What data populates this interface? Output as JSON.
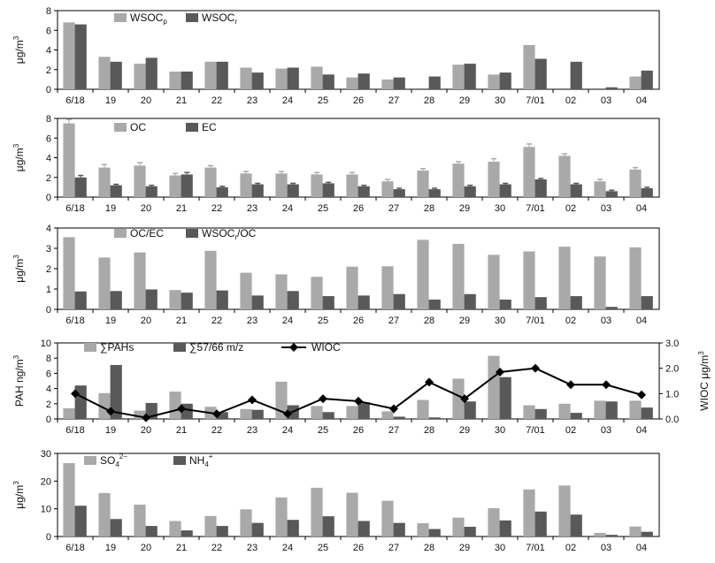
{
  "colors": {
    "light": "#a9a9a9",
    "dark": "#595959",
    "line": "#000000"
  },
  "chart_data": [
    {
      "type": "bar",
      "categories": [
        "6/18",
        "19",
        "20",
        "21",
        "22",
        "23",
        "24",
        "25",
        "26",
        "27",
        "28",
        "29",
        "30",
        "7/01",
        "02",
        "03",
        "04"
      ],
      "ylabel": "μg/m³",
      "ylim": [
        0,
        8
      ],
      "yticks": [
        0,
        2,
        4,
        6,
        8
      ],
      "series": [
        {
          "name": "WSOCp",
          "color": "light",
          "values": [
            6.8,
            3.3,
            2.6,
            1.8,
            2.8,
            2.2,
            2.1,
            2.3,
            1.2,
            1.0,
            0.0,
            2.5,
            1.5,
            4.5,
            0.0,
            0.0,
            1.3
          ]
        },
        {
          "name": "WSOCr",
          "color": "dark",
          "values": [
            6.6,
            2.8,
            3.2,
            1.8,
            2.8,
            1.7,
            2.2,
            1.5,
            1.6,
            1.2,
            1.3,
            2.6,
            1.7,
            3.1,
            2.8,
            0.2,
            1.9
          ]
        }
      ],
      "legend_text": [
        {
          "main": "WSOC",
          "sub": "p"
        },
        {
          "main": "WSOC",
          "sub": "r"
        }
      ]
    },
    {
      "type": "bar",
      "categories": [
        "6/18",
        "19",
        "20",
        "21",
        "22",
        "23",
        "24",
        "25",
        "26",
        "27",
        "28",
        "29",
        "30",
        "7/01",
        "02",
        "03",
        "04"
      ],
      "ylabel": "μg/m³",
      "ylim": [
        0,
        8
      ],
      "yticks": [
        0,
        2,
        4,
        6,
        8
      ],
      "series": [
        {
          "name": "OC",
          "color": "light",
          "values": [
            7.5,
            3.0,
            3.2,
            2.2,
            3.0,
            2.4,
            2.4,
            2.3,
            2.3,
            1.6,
            2.7,
            3.4,
            3.6,
            5.1,
            4.2,
            1.6,
            2.8
          ],
          "errors": [
            0.4,
            0.3,
            0.3,
            0.2,
            0.2,
            0.2,
            0.2,
            0.2,
            0.2,
            0.2,
            0.2,
            0.2,
            0.3,
            0.3,
            0.2,
            0.2,
            0.2
          ]
        },
        {
          "name": "EC",
          "color": "dark",
          "values": [
            2.0,
            1.2,
            1.1,
            2.3,
            1.0,
            1.3,
            1.3,
            1.4,
            1.1,
            0.8,
            0.8,
            1.1,
            1.3,
            1.8,
            1.3,
            0.6,
            0.9
          ],
          "errors": [
            0.2,
            0.1,
            0.1,
            0.2,
            0.1,
            0.1,
            0.1,
            0.1,
            0.1,
            0.1,
            0.1,
            0.1,
            0.1,
            0.1,
            0.1,
            0.1,
            0.1
          ]
        }
      ],
      "legend_text": [
        {
          "main": "OC",
          "sub": ""
        },
        {
          "main": "EC",
          "sub": ""
        }
      ]
    },
    {
      "type": "bar",
      "categories": [
        "6/18",
        "19",
        "20",
        "21",
        "22",
        "23",
        "24",
        "25",
        "26",
        "27",
        "28",
        "29",
        "30",
        "7/01",
        "02",
        "03",
        "04"
      ],
      "ylabel": "μg/m³",
      "ylim": [
        0,
        4
      ],
      "yticks": [
        0,
        1,
        2,
        3,
        4
      ],
      "series": [
        {
          "name": "OC/EC",
          "color": "light",
          "values": [
            3.55,
            2.55,
            2.8,
            0.95,
            2.88,
            1.8,
            1.72,
            1.6,
            2.1,
            2.12,
            3.42,
            3.22,
            2.68,
            2.85,
            3.08,
            2.6,
            3.05
          ]
        },
        {
          "name": "WSOCr/OC",
          "color": "dark",
          "values": [
            0.88,
            0.9,
            0.98,
            0.82,
            0.93,
            0.68,
            0.9,
            0.65,
            0.68,
            0.75,
            0.48,
            0.75,
            0.48,
            0.6,
            0.65,
            0.12,
            0.65
          ]
        }
      ],
      "legend_text": [
        {
          "main": "OC/EC",
          "sub": ""
        },
        {
          "main": "WSOC",
          "sub": "r",
          "tail": "/OC"
        }
      ]
    },
    {
      "type": "bar+line",
      "categories": [
        "6/18",
        "19",
        "20",
        "21",
        "22",
        "23",
        "24",
        "25",
        "26",
        "27",
        "28",
        "29",
        "30",
        "7/01",
        "02",
        "03",
        "04"
      ],
      "ylabel": "PAH ng/m³",
      "ylim": [
        0,
        10
      ],
      "yticks": [
        0,
        2,
        4,
        6,
        8,
        10
      ],
      "y2label": "WIOC μg/m³",
      "y2lim": [
        0,
        3
      ],
      "y2ticks": [
        "0.0",
        "1.0",
        "2.0",
        "3.0"
      ],
      "series": [
        {
          "name": "∑PAHs",
          "color": "light",
          "values": [
            1.4,
            3.4,
            1.1,
            3.6,
            1.6,
            1.3,
            4.9,
            1.7,
            1.7,
            1.0,
            2.5,
            5.3,
            8.3,
            1.8,
            2.0,
            2.4,
            2.4
          ]
        },
        {
          "name": "∑57/66 m/z",
          "color": "dark",
          "values": [
            4.4,
            7.1,
            2.1,
            2.0,
            0.9,
            1.2,
            1.8,
            0.9,
            2.2,
            0.3,
            0.2,
            2.3,
            5.5,
            1.3,
            0.8,
            2.3,
            1.5
          ]
        }
      ],
      "line": {
        "name": "WIOC",
        "values": [
          1.0,
          0.3,
          0.05,
          0.4,
          0.2,
          0.75,
          0.2,
          0.8,
          0.7,
          0.4,
          1.45,
          0.8,
          1.85,
          2.0,
          1.35,
          1.35,
          0.95
        ]
      },
      "legend_text": [
        {
          "main": "∑PAHs",
          "sub": ""
        },
        {
          "main": "∑57/66 m/z",
          "sub": ""
        },
        {
          "main": "WIOC",
          "sub": ""
        }
      ]
    },
    {
      "type": "bar",
      "categories": [
        "6/18",
        "19",
        "20",
        "21",
        "22",
        "23",
        "24",
        "25",
        "26",
        "27",
        "28",
        "29",
        "30",
        "7/01",
        "02",
        "03",
        "04"
      ],
      "ylabel": "μg/m³",
      "ylim": [
        0,
        30
      ],
      "yticks": [
        0,
        10,
        20,
        30
      ],
      "series": [
        {
          "name": "SO4 2-",
          "color": "light",
          "values": [
            26.5,
            15.7,
            11.5,
            5.6,
            7.4,
            9.8,
            14.1,
            17.6,
            15.8,
            12.9,
            4.8,
            6.8,
            10.2,
            17.0,
            18.4,
            1.3,
            3.6
          ]
        },
        {
          "name": "NH4 +",
          "color": "dark",
          "values": [
            11.1,
            6.3,
            3.8,
            2.2,
            3.8,
            4.9,
            6.0,
            7.3,
            5.6,
            4.9,
            2.7,
            3.5,
            5.8,
            9.0,
            7.9,
            0.6,
            1.7
          ]
        }
      ],
      "legend_text": [
        {
          "main": "SO",
          "sub": "4",
          "sup": "2−"
        },
        {
          "main": "NH",
          "sub": "4",
          "sup": "+"
        }
      ]
    }
  ]
}
